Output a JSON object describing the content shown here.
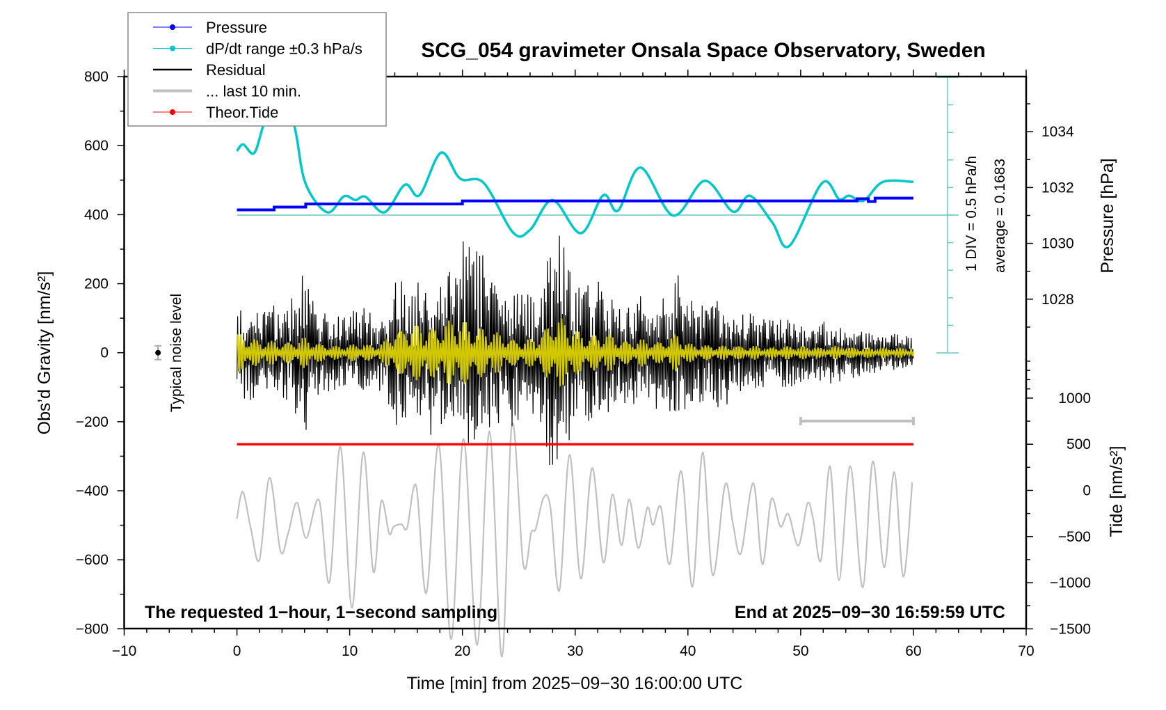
{
  "chart_data": {
    "type": "line",
    "title": "SCG_054 gravimeter Onsala Space Observatory, Sweden",
    "xlabel": "Time [min] from 2025−09−30 16:00:00 UTC",
    "ylabel_left": "Obs’d Gravity [nm/s²]",
    "ylabel_right_pressure": "Pressure [hPa]",
    "ylabel_right_tide": "Tide [nm/s²]",
    "xlim": [
      -10,
      70
    ],
    "ylim_left": [
      -800,
      800
    ],
    "xticks": [
      -10,
      0,
      10,
      20,
      30,
      40,
      50,
      60,
      70
    ],
    "yticks_left": [
      800,
      600,
      400,
      200,
      0,
      -200,
      -400,
      -600,
      -800
    ],
    "yticks_pressure": [
      1034,
      1032,
      1030,
      1028
    ],
    "yticks_tide": [
      1000,
      500,
      0,
      -500,
      -1000,
      -1500
    ],
    "grid": false,
    "legend_placement": "top-left",
    "legend": [
      {
        "label": "Pressure",
        "color": "#0000ff",
        "marker": "dot"
      },
      {
        "label": "dP/dt range ±0.3 hPa/s",
        "color": "#00c8c8",
        "marker": "dot"
      },
      {
        "label": "Residual",
        "color": "#000000",
        "marker": "line"
      },
      {
        "label": "... last 10 min.",
        "color": "#c0c0c0",
        "marker": "line"
      },
      {
        "label": "Theor.Tide",
        "color": "#ff0000",
        "marker": "dot"
      }
    ],
    "annotations": {
      "div_scale": "1 DIV = 0.5 hPa/h",
      "average": "average = 0.1683",
      "noise_label": "Typical noise level",
      "sampling_note": "The requested 1−hour, 1−second sampling",
      "end_note": "End at 2025−09−30 16:59:59 UTC"
    },
    "dpdt_average": 0.1683,
    "dpdt_div": 0.5,
    "noise_level": {
      "x": -7,
      "y": 0,
      "err": 20
    },
    "last10_range": {
      "x": [
        50,
        60
      ],
      "y": -198
    },
    "pressure": {
      "unit": "hPa",
      "steps": [
        [
          0,
          1031.2
        ],
        [
          3.3,
          1031.3
        ],
        [
          6.1,
          1031.41
        ],
        [
          20,
          1031.52
        ],
        [
          55,
          1031.6
        ],
        [
          56,
          1031.5
        ],
        [
          56.6,
          1031.62
        ],
        [
          60,
          1031.62
        ]
      ]
    },
    "dpdt": {
      "unit": "hPa/h",
      "x": [
        0,
        0.56,
        1.52,
        2.35,
        3.7,
        5.1,
        6.07,
        8.0,
        9.5,
        10.5,
        11.4,
        13.1,
        14.9,
        16.2,
        18.1,
        19.8,
        21.9,
        24.5,
        26.0,
        28.0,
        30.5,
        32.5,
        33.8,
        35.8,
        38.7,
        41.5,
        44.0,
        45.5,
        47.5,
        49.0,
        51.9,
        53.4,
        54.3,
        55.6,
        57.3,
        60
      ],
      "y": [
        1.33,
        1.45,
        1.29,
        1.8,
        2.6,
        1.78,
        0.75,
        0.22,
        0.51,
        0.44,
        0.5,
        0.22,
        0.72,
        0.53,
        1.3,
        0.83,
        0.75,
        -0.15,
        -0.1,
        0.44,
        -0.16,
        0.53,
        0.25,
        1.03,
        0.16,
        0.79,
        0.23,
        0.52,
        0.03,
        -0.39,
        0.75,
        0.46,
        0.52,
        0.43,
        0.77,
        0.77
      ]
    },
    "tide": {
      "unit": "nm/s²",
      "x": [
        0,
        60
      ],
      "y": [
        500,
        500
      ]
    },
    "last10": {
      "unit": "nm/s²",
      "x": [
        0,
        0.52,
        1.24,
        2.0,
        2.89,
        3.86,
        4.54,
        5.32,
        6.14,
        7.28,
        8.2,
        9.18,
        10.2,
        11.2,
        12.1,
        12.8,
        13.5,
        13.9,
        14.6,
        15.1,
        15.9,
        16.8,
        17.9,
        19.0,
        20.1,
        21.3,
        22.4,
        23.5,
        24.4,
        25.4,
        26.1,
        26.5,
        27.2,
        27.8,
        28.6,
        29.5,
        30.5,
        31.5,
        32.5,
        33.3,
        34.1,
        34.8,
        35.6,
        36.4,
        36.9,
        37.6,
        38.4,
        39.4,
        40.4,
        41.3,
        42.2,
        43.3,
        44.0,
        44.7,
        45.8,
        46.6,
        47.4,
        48.2,
        48.9,
        49.8,
        50.6,
        51.1,
        51.8,
        52.6,
        53.4,
        54.4,
        55.5,
        56.4,
        57.4,
        58.3,
        59.1,
        59.9
      ],
      "y": [
        -481,
        -403,
        -511,
        -600,
        -362,
        -575,
        -524,
        -434,
        -537,
        -427,
        -666,
        -272,
        -739,
        -289,
        -635,
        -430,
        -524,
        -504,
        -497,
        -507,
        -386,
        -696,
        -265,
        -830,
        -250,
        -847,
        -228,
        -881,
        -207,
        -615,
        -521,
        -511,
        -420,
        -447,
        -689,
        -296,
        -655,
        -334,
        -608,
        -411,
        -558,
        -425,
        -566,
        -449,
        -499,
        -447,
        -612,
        -343,
        -678,
        -289,
        -645,
        -382,
        -497,
        -581,
        -378,
        -613,
        -424,
        -504,
        -467,
        -559,
        -437,
        -481,
        -602,
        -329,
        -659,
        -329,
        -680,
        -315,
        -622,
        -346,
        -649,
        -376
      ]
    },
    "residual_envelope": {
      "unit": "nm/s²",
      "minutes": [
        0,
        1,
        2,
        3,
        4,
        5,
        6,
        7,
        8,
        9,
        10,
        11,
        12,
        13,
        14,
        15,
        16,
        17,
        18,
        19,
        20,
        21,
        22,
        23,
        24,
        25,
        26,
        27,
        28,
        29,
        30,
        31,
        32,
        33,
        34,
        35,
        36,
        37,
        38,
        39,
        40,
        41,
        42,
        43,
        44,
        45,
        46,
        47,
        48,
        49,
        50,
        51,
        52,
        53,
        54,
        55,
        56,
        57,
        58,
        59,
        60
      ],
      "residual_peak": [
        120,
        130,
        120,
        140,
        130,
        150,
        270,
        120,
        110,
        110,
        100,
        130,
        110,
        100,
        200,
        210,
        180,
        200,
        220,
        250,
        300,
        300,
        260,
        220,
        200,
        190,
        180,
        200,
        350,
        330,
        200,
        210,
        190,
        180,
        160,
        150,
        140,
        150,
        150,
        230,
        150,
        150,
        140,
        170,
        120,
        110,
        110,
        100,
        100,
        100,
        90,
        80,
        90,
        80,
        70,
        70,
        60,
        60,
        60,
        55,
        40
      ],
      "filtered_peak": [
        60,
        55,
        40,
        35,
        35,
        40,
        45,
        35,
        25,
        20,
        25,
        30,
        25,
        30,
        80,
        90,
        80,
        85,
        90,
        100,
        100,
        90,
        80,
        60,
        55,
        40,
        40,
        60,
        120,
        100,
        70,
        60,
        60,
        55,
        45,
        40,
        40,
        35,
        40,
        60,
        30,
        25,
        25,
        20,
        25,
        20,
        20,
        15,
        20,
        20,
        20,
        20,
        15,
        20,
        20,
        15,
        15,
        15,
        15,
        15,
        12
      ],
      "filtered_color": "#d2c800"
    }
  }
}
